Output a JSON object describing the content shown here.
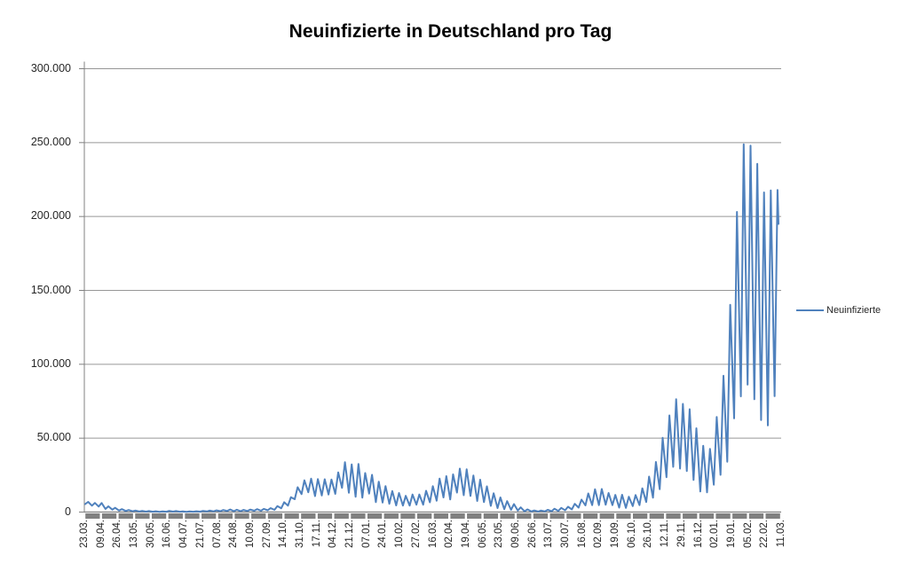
{
  "chart_data": {
    "type": "line",
    "title": "Neuinfizierte in Deutschland pro Tag",
    "legend": {
      "position": "right",
      "entries": [
        {
          "label": "Neuinfizierte",
          "color": "#4F81BD"
        }
      ]
    },
    "ylim": [
      0,
      300000
    ],
    "y_tick_interval": 50000,
    "y_tick_labels": [
      "0",
      "50.000",
      "100.000",
      "150.000",
      "200.000",
      "250.000",
      "300.000"
    ],
    "x_tick_labels": [
      "23.03.",
      "09.04.",
      "26.04.",
      "13.05.",
      "30.05.",
      "16.06.",
      "04.07.",
      "21.07.",
      "07.08.",
      "24.08.",
      "10.09.",
      "27.09.",
      "14.10.",
      "31.10.",
      "17.11.",
      "04.12.",
      "21.12.",
      "07.01.",
      "24.01.",
      "10.02.",
      "27.02.",
      "16.03.",
      "02.04.",
      "19.04.",
      "06.05.",
      "23.05.",
      "09.06.",
      "26.06.",
      "13.07.",
      "30.07.",
      "16.08.",
      "02.09.",
      "19.09.",
      "06.10.",
      "26.10.",
      "12.11.",
      "29.11.",
      "16.12.",
      "02.01.",
      "19.01.",
      "05.02.",
      "22.02.",
      "11.03."
    ],
    "grid": "horizontal-major-only",
    "series": [
      {
        "name": "Neuinfizierte",
        "color": "#4F81BD",
        "sampling": "weekly envelope [monday_low, midweek_high], week 0 starts 23.03.2020, last label 11.03.2022",
        "weekly_low_high": [
          [
            5400,
            6900
          ],
          [
            4300,
            6200
          ],
          [
            3700,
            6100
          ],
          [
            2100,
            3900
          ],
          [
            1600,
            2900
          ],
          [
            1000,
            2000
          ],
          [
            700,
            1400
          ],
          [
            550,
            1000
          ],
          [
            380,
            800
          ],
          [
            300,
            700
          ],
          [
            250,
            550
          ],
          [
            200,
            500
          ],
          [
            250,
            800
          ],
          [
            300,
            700
          ],
          [
            230,
            500
          ],
          [
            200,
            450
          ],
          [
            250,
            550
          ],
          [
            300,
            800
          ],
          [
            400,
            950
          ],
          [
            500,
            1150
          ],
          [
            600,
            1400
          ],
          [
            700,
            1750
          ],
          [
            600,
            1570
          ],
          [
            600,
            1450
          ],
          [
            700,
            1700
          ],
          [
            900,
            2000
          ],
          [
            900,
            2150
          ],
          [
            1200,
            2650
          ],
          [
            1500,
            4000
          ],
          [
            2500,
            6650
          ],
          [
            4300,
            10000
          ],
          [
            8700,
            16800
          ],
          [
            12100,
            21500
          ],
          [
            13400,
            22600
          ],
          [
            10800,
            22300
          ],
          [
            11200,
            22200
          ],
          [
            11900,
            22050
          ],
          [
            12300,
            26900
          ],
          [
            16400,
            33700
          ],
          [
            13000,
            32200
          ],
          [
            10300,
            32500
          ],
          [
            9800,
            26400
          ],
          [
            12500,
            25200
          ],
          [
            6700,
            20600
          ],
          [
            6400,
            17600
          ],
          [
            5600,
            14200
          ],
          [
            4500,
            12900
          ],
          [
            4400,
            11000
          ],
          [
            4400,
            11900
          ],
          [
            5000,
            11900
          ],
          [
            5000,
            14400
          ],
          [
            6600,
            17500
          ],
          [
            7700,
            22700
          ],
          [
            9900,
            24300
          ],
          [
            8500,
            25500
          ],
          [
            13200,
            29400
          ],
          [
            11400,
            28900
          ],
          [
            10900,
            24700
          ],
          [
            7500,
            21900
          ],
          [
            6700,
            17400
          ],
          [
            4200,
            12700
          ],
          [
            2700,
            9900
          ],
          [
            1900,
            7400
          ],
          [
            1500,
            5400
          ],
          [
            1000,
            3200
          ],
          [
            500,
            1800
          ],
          [
            400,
            1100
          ],
          [
            350,
            1000
          ],
          [
            500,
            1500
          ],
          [
            550,
            2200
          ],
          [
            800,
            2800
          ],
          [
            1200,
            3600
          ],
          [
            1800,
            5600
          ],
          [
            3000,
            8400
          ],
          [
            4500,
            12600
          ],
          [
            4700,
            15400
          ],
          [
            4700,
            15600
          ],
          [
            5000,
            12900
          ],
          [
            4700,
            11600
          ],
          [
            3000,
            11700
          ],
          [
            2800,
            10400
          ],
          [
            4000,
            11500
          ],
          [
            4700,
            16100
          ],
          [
            6800,
            24000
          ],
          [
            9700,
            33900
          ],
          [
            15500,
            50200
          ],
          [
            23600,
            65400
          ],
          [
            30600,
            76400
          ],
          [
            29400,
            73200
          ],
          [
            27800,
            69600
          ],
          [
            21700,
            56700
          ],
          [
            13900,
            44900
          ],
          [
            13300,
            42800
          ],
          [
            18500,
            64300
          ],
          [
            25200,
            92200
          ],
          [
            34100,
            140200
          ],
          [
            63400,
            203100
          ],
          [
            78300,
            248800
          ],
          [
            86200,
            247900
          ],
          [
            76300,
            235600
          ],
          [
            62300,
            216300
          ],
          [
            58600,
            217600
          ],
          [
            78400,
            218000
          ]
        ],
        "final_value": 195000
      }
    ],
    "colors": {
      "line": "#4F81BD",
      "gridline": "#969696",
      "axis": "#808080",
      "tick_band": "#808080",
      "label_text": "#262626",
      "title_text": "#000000",
      "background": "#FFFFFF"
    }
  }
}
